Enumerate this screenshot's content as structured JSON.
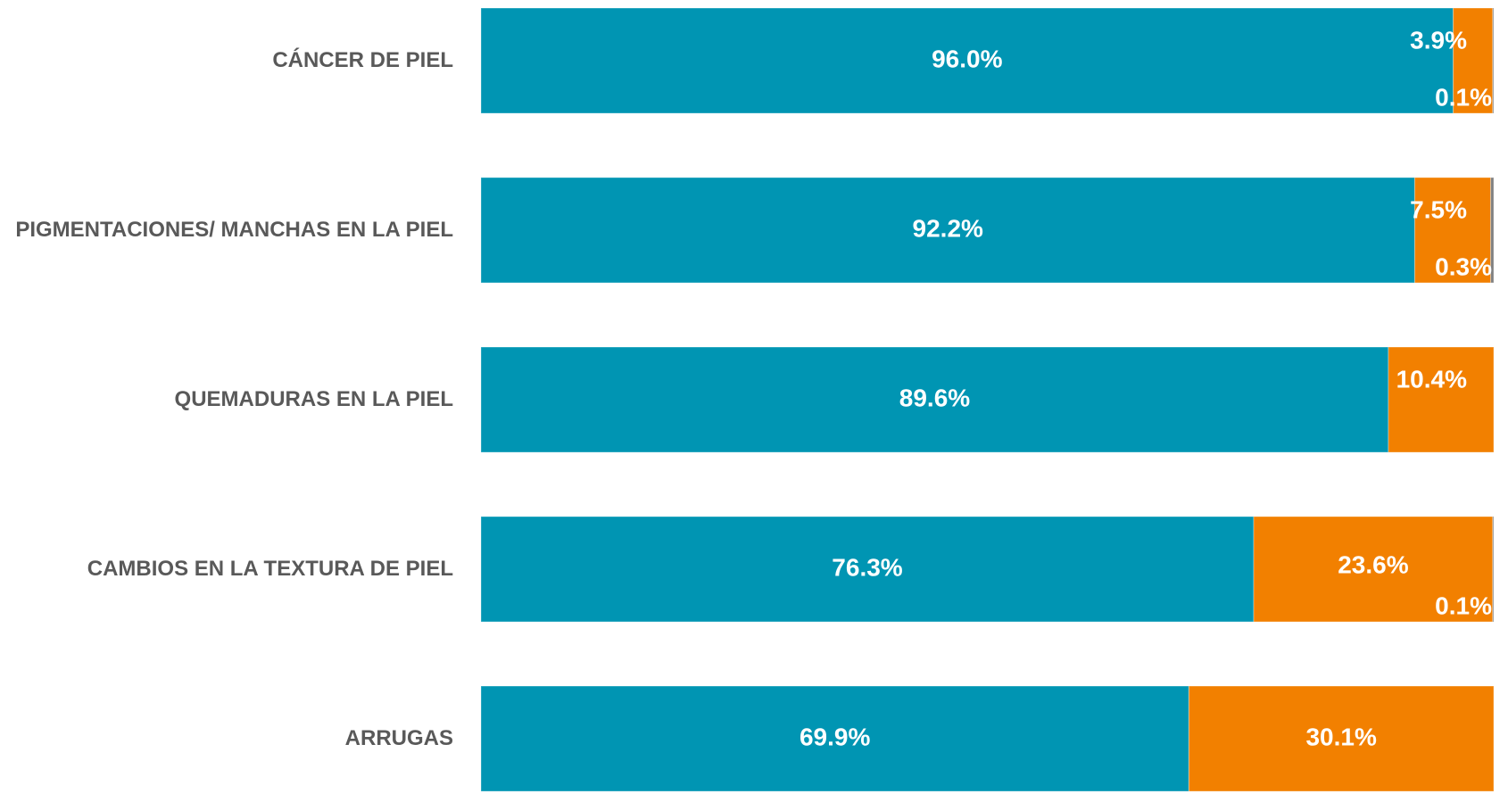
{
  "chart_data": {
    "type": "stacked-bar-horizontal",
    "categories": [
      "CÁNCER DE PIEL",
      "PIGMENTACIONES/ MANCHAS EN LA PIEL",
      "QUEMADURAS EN LA PIEL",
      "CAMBIOS EN LA TEXTURA DE PIEL",
      "ARRUGAS"
    ],
    "series": [
      {
        "color": "#0095b3",
        "values": [
          96.0,
          92.2,
          89.6,
          76.3,
          69.9
        ],
        "value_labels": [
          "96.0%",
          "92.2%",
          "89.6%",
          "76.3%",
          "69.9%"
        ]
      },
      {
        "color": "#f28000",
        "values": [
          3.9,
          7.5,
          10.4,
          23.6,
          30.1
        ],
        "value_labels": [
          "3.9%",
          "7.5%",
          "10.4%",
          "23.6%",
          "30.1%"
        ]
      },
      {
        "color": "#7f7f7f",
        "values": [
          0.1,
          0.3,
          0,
          0.1,
          0
        ],
        "value_labels": [
          "0.1%",
          "0.3%",
          null,
          "0.1%",
          null
        ]
      }
    ],
    "xlim": [
      0,
      100
    ]
  }
}
